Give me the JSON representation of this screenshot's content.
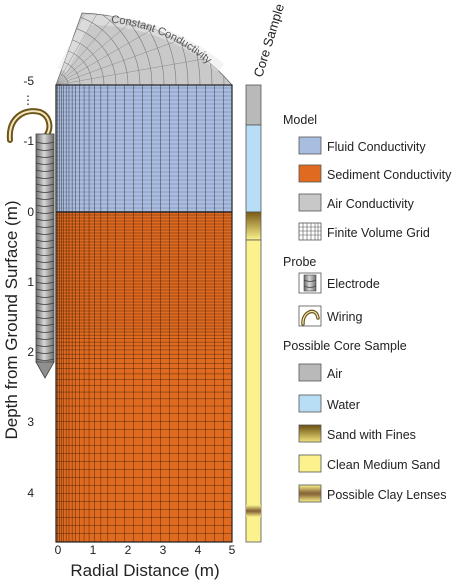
{
  "figure": {
    "ylabel": "Depth from Ground Surface (m)",
    "xlabel": "Radial Distance (m)",
    "arc_label": "Constant Conductivity",
    "core_label": "Core Sample",
    "y_ticks": [
      "-5",
      "⋮",
      "-1",
      "0",
      "1",
      "2",
      "3",
      "4"
    ],
    "x_ticks": [
      "0",
      "1",
      "2",
      "3",
      "4",
      "5"
    ]
  },
  "legend": {
    "model_heading": "Model",
    "model": [
      {
        "label": "Fluid Conductivity",
        "color": "#a9bde0",
        "icon": "swatch-fluid"
      },
      {
        "label": "Sediment Conductivity",
        "color": "#e06a1f",
        "icon": "swatch-sediment"
      },
      {
        "label": "Air Conductivity",
        "color": "#c8c8c8",
        "icon": "swatch-air"
      },
      {
        "label": "Finite Volume Grid",
        "color": "#ffffff",
        "icon": "grid-icon"
      }
    ],
    "probe_heading": "Probe",
    "probe": [
      {
        "label": "Electrode",
        "icon": "electrode-icon"
      },
      {
        "label": "Wiring",
        "icon": "wiring-icon"
      }
    ],
    "core_heading": "Possible Core Sample",
    "core": [
      {
        "label": "Air",
        "color": "#b9b9b9",
        "icon": "swatch-core-air"
      },
      {
        "label": "Water",
        "color": "#b7def4",
        "icon": "swatch-water"
      },
      {
        "label": "Sand with Fines",
        "color": "#8a6a1e",
        "icon": "swatch-sand-fines"
      },
      {
        "label": "Clean Medium Sand",
        "color": "#fbf28d",
        "icon": "swatch-clean-sand"
      },
      {
        "label": "Possible Clay Lenses",
        "color": "#fbf28d",
        "icon": "swatch-clay-lenses"
      }
    ]
  }
}
